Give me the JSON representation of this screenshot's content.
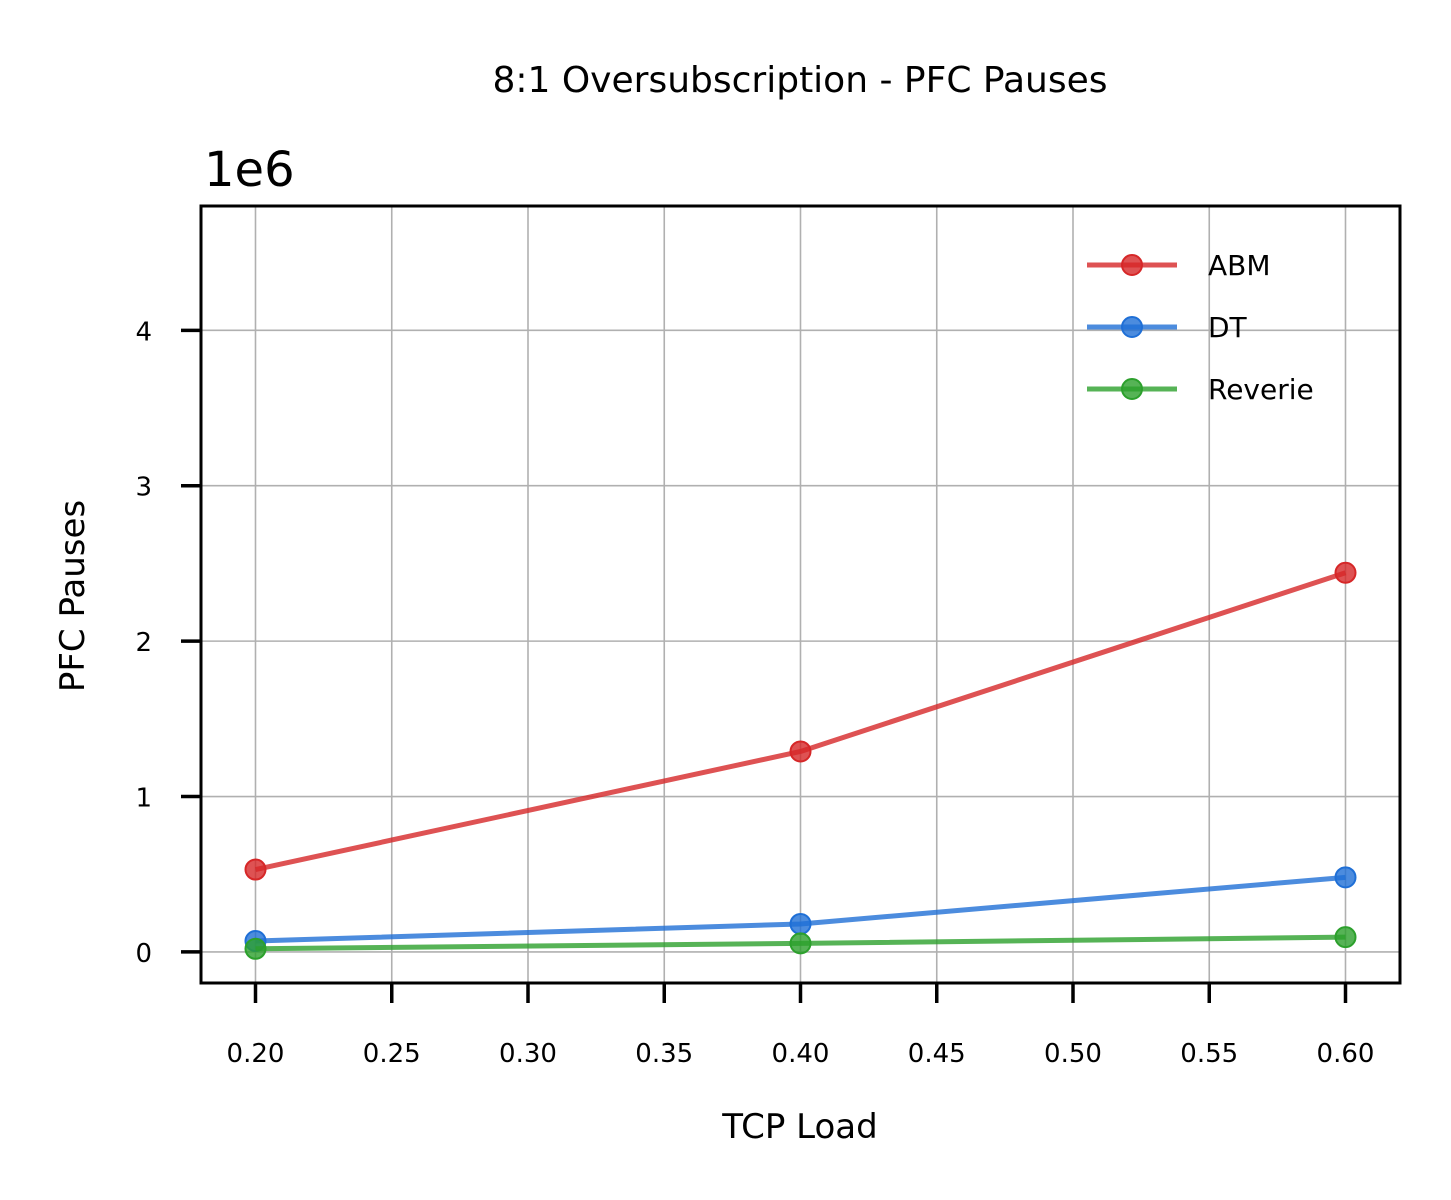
{
  "chart_data": {
    "type": "line",
    "title": "8:1 Oversubscription - PFC Pauses",
    "xlabel": "TCP Load",
    "ylabel": "PFC Pauses",
    "y_offset_label": "1e6",
    "xlim": [
      0.18,
      0.62
    ],
    "ylim": [
      -0.2,
      4.8
    ],
    "x_ticks": [
      0.2,
      0.25,
      0.3,
      0.35,
      0.4,
      0.45,
      0.5,
      0.55,
      0.6
    ],
    "x_tick_labels": [
      "0.20",
      "0.25",
      "0.30",
      "0.35",
      "0.40",
      "0.45",
      "0.50",
      "0.55",
      "0.60"
    ],
    "y_ticks": [
      0,
      1,
      2,
      3,
      4
    ],
    "y_tick_labels": [
      "0",
      "1",
      "2",
      "3",
      "4"
    ],
    "grid": true,
    "legend_position": "top-right",
    "x": [
      0.2,
      0.4,
      0.6
    ],
    "series": [
      {
        "name": "ABM",
        "color": "#d62728",
        "values": [
          0.53,
          1.29,
          2.44
        ]
      },
      {
        "name": "DT",
        "color": "#1f6fd6",
        "values": [
          0.07,
          0.18,
          0.48
        ]
      },
      {
        "name": "Reverie",
        "color": "#2ca02c",
        "values": [
          0.02,
          0.055,
          0.095
        ]
      }
    ]
  }
}
